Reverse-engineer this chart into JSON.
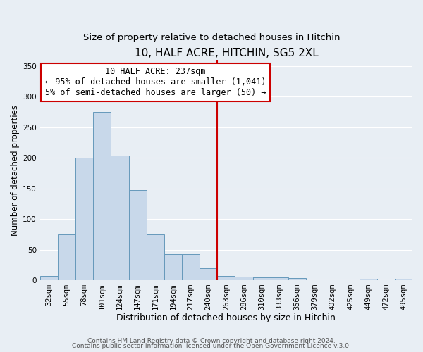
{
  "title": "10, HALF ACRE, HITCHIN, SG5 2XL",
  "subtitle": "Size of property relative to detached houses in Hitchin",
  "xlabel": "Distribution of detached houses by size in Hitchin",
  "ylabel": "Number of detached properties",
  "bin_labels": [
    "32sqm",
    "55sqm",
    "78sqm",
    "101sqm",
    "124sqm",
    "147sqm",
    "171sqm",
    "194sqm",
    "217sqm",
    "240sqm",
    "263sqm",
    "286sqm",
    "310sqm",
    "333sqm",
    "356sqm",
    "379sqm",
    "402sqm",
    "425sqm",
    "449sqm",
    "472sqm",
    "495sqm"
  ],
  "bar_heights": [
    7,
    75,
    200,
    275,
    204,
    147,
    75,
    42,
    42,
    20,
    7,
    6,
    4,
    4,
    3,
    0,
    0,
    0,
    2,
    0,
    2
  ],
  "bar_color": "#c8d8ea",
  "bar_edge_color": "#6699bb",
  "background_color": "#e8eef4",
  "grid_color": "#ffffff",
  "vline_x": 9.5,
  "vline_color": "#cc0000",
  "annotation_title": "10 HALF ACRE: 237sqm",
  "annotation_line1": "← 95% of detached houses are smaller (1,041)",
  "annotation_line2": "5% of semi-detached houses are larger (50) →",
  "annotation_box_color": "#ffffff",
  "annotation_box_edge": "#cc0000",
  "ylim": [
    0,
    360
  ],
  "yticks": [
    0,
    50,
    100,
    150,
    200,
    250,
    300,
    350
  ],
  "footer1": "Contains HM Land Registry data © Crown copyright and database right 2024.",
  "footer2": "Contains public sector information licensed under the Open Government Licence v.3.0.",
  "title_fontsize": 11,
  "subtitle_fontsize": 9.5,
  "xlabel_fontsize": 9,
  "ylabel_fontsize": 8.5,
  "tick_fontsize": 7.5,
  "footer_fontsize": 6.5,
  "annotation_fontsize": 8.5
}
